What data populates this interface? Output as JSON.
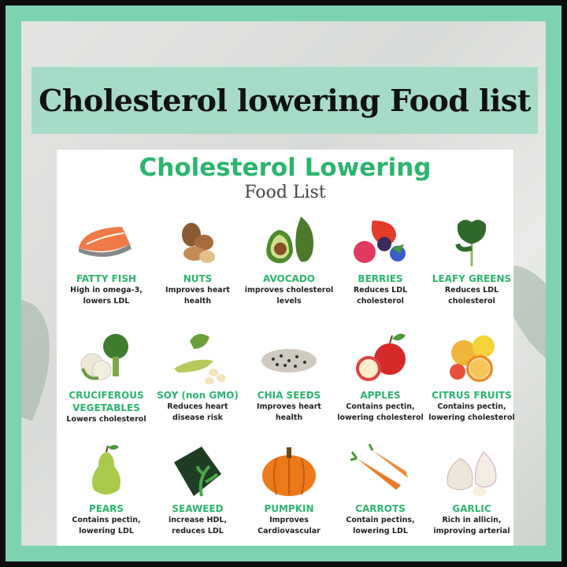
{
  "banner_title": "Cholesterol lowering Food list",
  "card": {
    "title": "Cholesterol Lowering",
    "subtitle": "Food List"
  },
  "accent_color": "#2cb46e",
  "frame_color": "#7dd3b0",
  "foods": [
    {
      "name": "FATTY FISH",
      "desc": "High in omega-3, lowers LDL",
      "icon": "salmon-icon"
    },
    {
      "name": "NUTS",
      "desc": "Improves heart health",
      "icon": "nuts-icon"
    },
    {
      "name": "AVOCADO",
      "desc": "improves cholesterol levels",
      "icon": "avocado-icon"
    },
    {
      "name": "BERRIES",
      "desc": "Reduces LDL cholesterol",
      "icon": "berries-icon"
    },
    {
      "name": "LEAFY GREENS",
      "desc": "Reduces LDL cholesterol",
      "icon": "kale-icon"
    },
    {
      "name": "CRUCIFEROUS VEGETABLES",
      "desc": "Lowers cholesterol",
      "icon": "broccoli-icon"
    },
    {
      "name": "SOY (non GMO)",
      "desc": "Reduces heart disease risk",
      "icon": "soybean-icon"
    },
    {
      "name": "CHIA SEEDS",
      "desc": "Improves heart health",
      "icon": "seeds-icon"
    },
    {
      "name": "APPLES",
      "desc": "Contains pectin, lowering cholesterol",
      "icon": "apple-icon"
    },
    {
      "name": "CITRUS FRUITS",
      "desc": "Contains pectin, lowering cholesterol",
      "icon": "citrus-icon"
    },
    {
      "name": "PEARS",
      "desc": "Contains pectin, lowering LDL",
      "icon": "pear-icon"
    },
    {
      "name": "SEAWEED",
      "desc": "increase HDL, reduces LDL",
      "icon": "seaweed-icon"
    },
    {
      "name": "PUMPKIN",
      "desc": "Improves Cardiovascular",
      "icon": "pumpkin-icon"
    },
    {
      "name": "CARROTS",
      "desc": "Contain pectins, lowering LDL",
      "icon": "carrot-icon"
    },
    {
      "name": "GARLIC",
      "desc": "Rich in allicin, improving arterial",
      "icon": "garlic-icon"
    }
  ]
}
